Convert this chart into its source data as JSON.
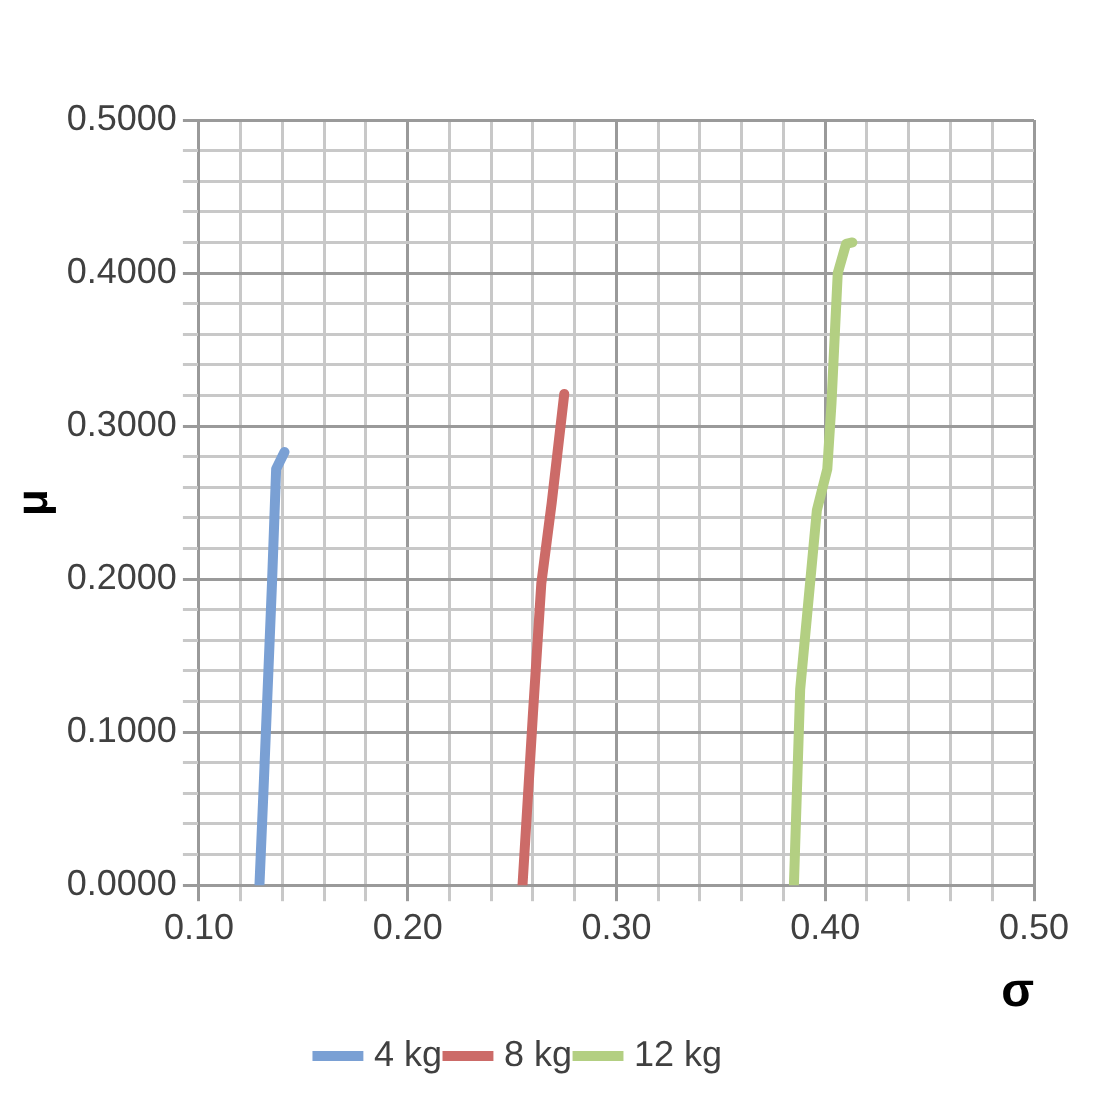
{
  "chart_data": {
    "type": "line",
    "xlabel": "σ",
    "ylabel": "μ",
    "grid": true,
    "legend": "bottom",
    "marker": "none",
    "line_style": "solid",
    "xlim": [
      0.1,
      0.5
    ],
    "ylim": [
      0,
      0.5
    ],
    "xticks": [
      {
        "value": 0.1,
        "label": "0.10"
      },
      {
        "value": 0.12,
        "label": null
      },
      {
        "value": 0.14,
        "label": null
      },
      {
        "value": 0.16,
        "label": null
      },
      {
        "value": 0.18,
        "label": null
      },
      {
        "value": 0.2,
        "label": "0.20"
      },
      {
        "value": 0.22,
        "label": null
      },
      {
        "value": 0.24,
        "label": null
      },
      {
        "value": 0.26,
        "label": null
      },
      {
        "value": 0.28,
        "label": null
      },
      {
        "value": 0.3,
        "label": "0.30"
      },
      {
        "value": 0.32,
        "label": null
      },
      {
        "value": 0.34,
        "label": null
      },
      {
        "value": 0.36,
        "label": null
      },
      {
        "value": 0.38,
        "label": null
      },
      {
        "value": 0.4,
        "label": "0.40"
      },
      {
        "value": 0.42,
        "label": null
      },
      {
        "value": 0.44,
        "label": null
      },
      {
        "value": 0.46,
        "label": null
      },
      {
        "value": 0.48,
        "label": null
      },
      {
        "value": 0.5,
        "label": "0.50"
      }
    ],
    "yticks": [
      {
        "value": 0,
        "label": "0.0000"
      },
      {
        "value": 0.02,
        "label": null
      },
      {
        "value": 0.04,
        "label": null
      },
      {
        "value": 0.06,
        "label": null
      },
      {
        "value": 0.08,
        "label": null
      },
      {
        "value": 0.1,
        "label": "0.1000"
      },
      {
        "value": 0.12,
        "label": null
      },
      {
        "value": 0.14,
        "label": null
      },
      {
        "value": 0.16,
        "label": null
      },
      {
        "value": 0.18,
        "label": null
      },
      {
        "value": 0.2,
        "label": "0.2000"
      },
      {
        "value": 0.22,
        "label": null
      },
      {
        "value": 0.24,
        "label": null
      },
      {
        "value": 0.26,
        "label": null
      },
      {
        "value": 0.28,
        "label": null
      },
      {
        "value": 0.3,
        "label": "0.3000"
      },
      {
        "value": 0.32,
        "label": null
      },
      {
        "value": 0.34,
        "label": null
      },
      {
        "value": 0.36,
        "label": null
      },
      {
        "value": 0.38,
        "label": null
      },
      {
        "value": 0.4,
        "label": "0.4000"
      },
      {
        "value": 0.42,
        "label": null
      },
      {
        "value": 0.44,
        "label": null
      },
      {
        "value": 0.46,
        "label": null
      },
      {
        "value": 0.48,
        "label": null
      },
      {
        "value": 0.5,
        "label": "0.5000"
      }
    ],
    "series": [
      {
        "name": "4 kg",
        "color": "#7aa0d4",
        "x": [
          0.129,
          0.131,
          0.135,
          0.137,
          0.141
        ],
        "values": [
          0,
          0.064,
          0.197,
          0.272,
          0.283
        ]
      },
      {
        "name": "8 kg",
        "color": "#cc6b68",
        "x": [
          0.255,
          0.26,
          0.264,
          0.269,
          0.275
        ],
        "values": [
          0,
          0.112,
          0.197,
          0.25,
          0.321
        ]
      },
      {
        "name": "12 kg",
        "color": "#b3cf82",
        "x": [
          0.385,
          0.388,
          0.396,
          0.401,
          0.403,
          0.406,
          0.41,
          0.413
        ],
        "values": [
          0,
          0.128,
          0.245,
          0.272,
          0.315,
          0.4,
          0.419,
          0.42
        ]
      }
    ]
  }
}
